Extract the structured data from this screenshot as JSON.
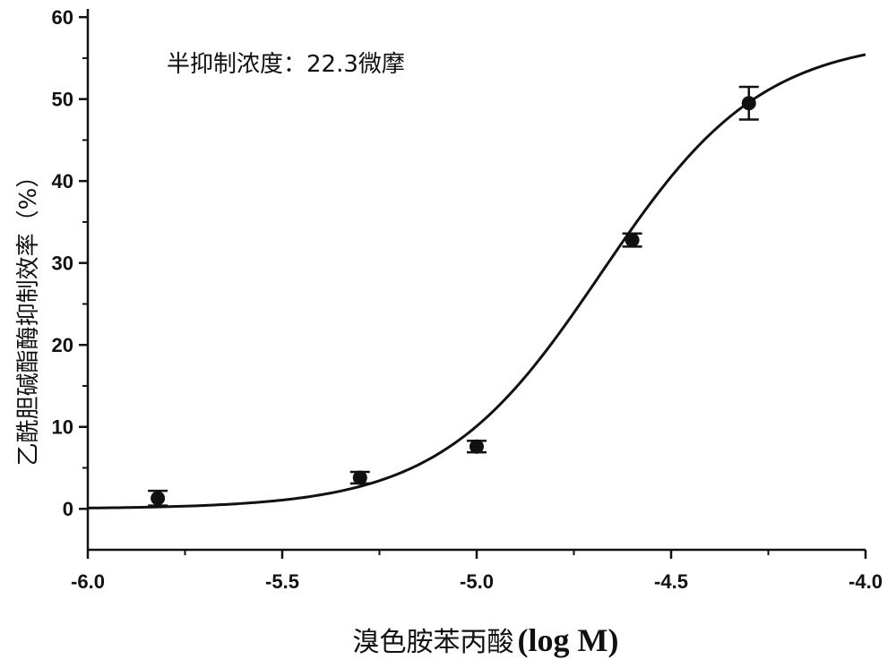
{
  "chart_data": {
    "type": "scatter",
    "annotation": "半抑制浓度：22.3微摩",
    "xlabel_text": "溴色胺苯丙酸",
    "xlabel_unit": "(log M)",
    "ylabel": "乙酰胆碱酯酶抑制效率（%）",
    "xlim": [
      -6.0,
      -4.0
    ],
    "ylim": [
      -5,
      61
    ],
    "x_ticks": [
      -6.0,
      -5.5,
      -5.0,
      -4.5,
      -4.0
    ],
    "x_tick_labels": [
      "-6.0",
      "-5.5",
      "-5.0",
      "-4.5",
      "-4.0"
    ],
    "y_ticks": [
      0,
      10,
      20,
      30,
      40,
      50,
      60
    ],
    "y_tick_labels": [
      "0",
      "10",
      "20",
      "30",
      "40",
      "50",
      "60"
    ],
    "series": [
      {
        "points": [
          {
            "x": -5.82,
            "y": 1.3,
            "err": 0.9
          },
          {
            "x": -5.3,
            "y": 3.8,
            "err": 0.7
          },
          {
            "x": -5.0,
            "y": 7.6,
            "err": 0.7
          },
          {
            "x": -4.6,
            "y": 32.8,
            "err": 0.8
          },
          {
            "x": -4.3,
            "y": 49.5,
            "err": 2.0
          }
        ]
      }
    ],
    "fit": {
      "model": "logistic",
      "bottom": 0,
      "top": 57.5,
      "log_ic50": -4.68,
      "hill": 2.1
    }
  }
}
